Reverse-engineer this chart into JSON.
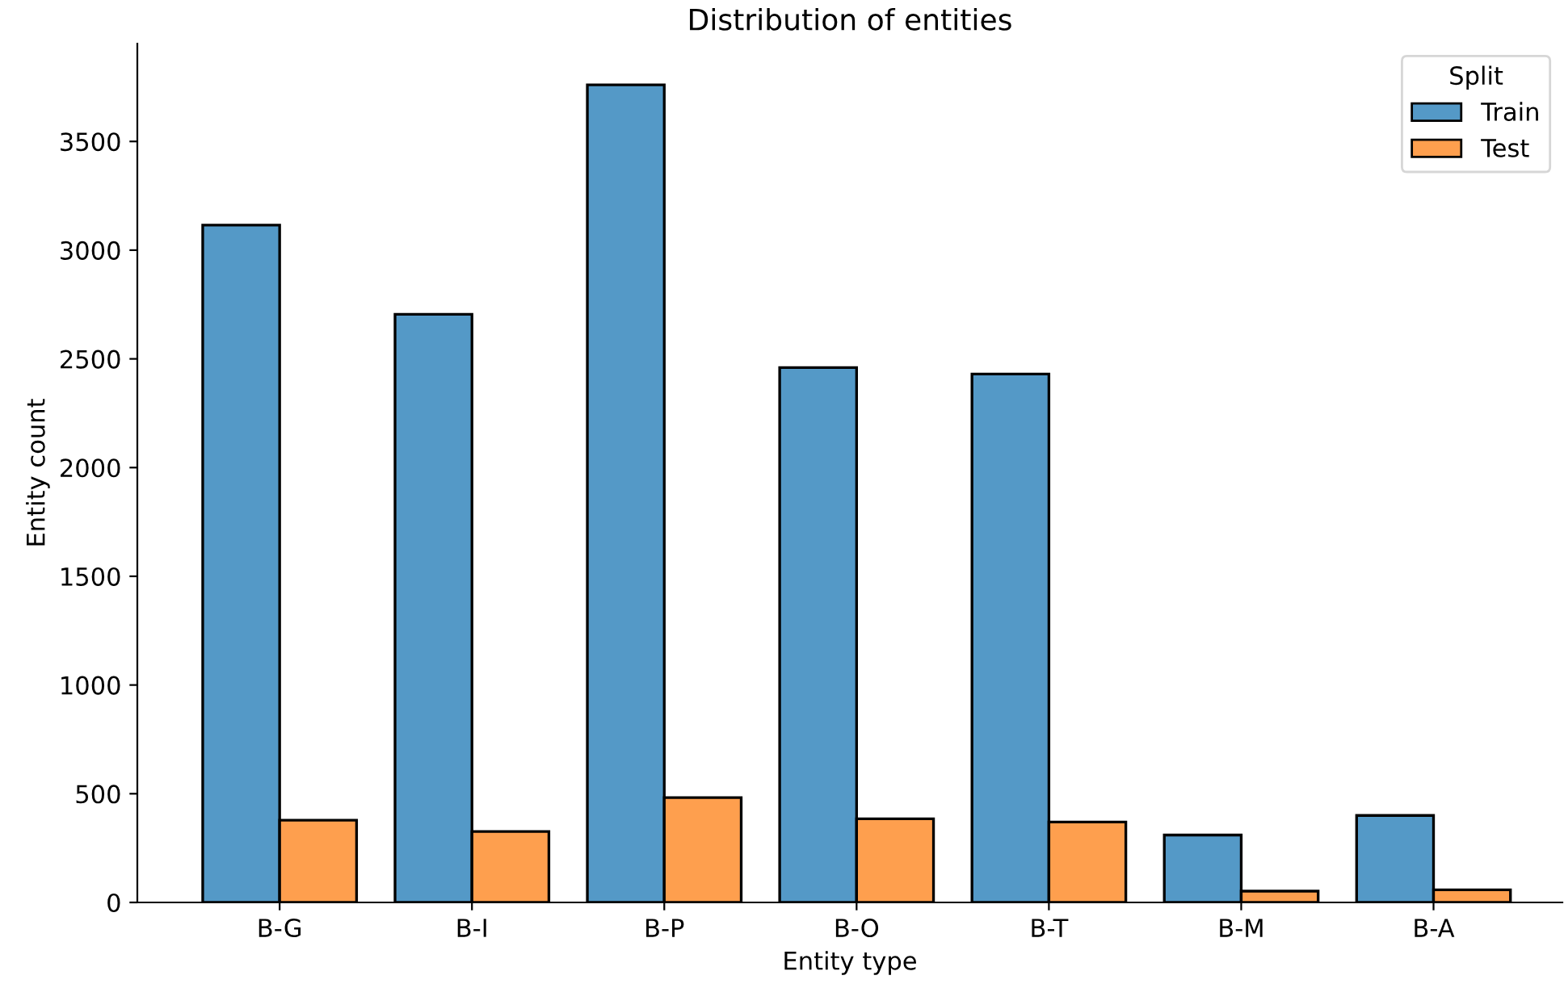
{
  "chart_data": {
    "type": "bar",
    "title": "Distribution of entities",
    "xlabel": "Entity type",
    "ylabel": "Entity count",
    "legend_title": "Split",
    "categories": [
      "B-G",
      "B-I",
      "B-P",
      "B-O",
      "B-T",
      "B-M",
      "B-A"
    ],
    "series": [
      {
        "name": "Train",
        "color": "#5499c7",
        "values": [
          3115,
          2705,
          3760,
          2460,
          2430,
          310,
          400
        ]
      },
      {
        "name": "Test",
        "color": "#fe9f4e",
        "values": [
          378,
          326,
          482,
          385,
          370,
          52,
          58
        ]
      }
    ],
    "ylim": [
      0,
      3950
    ],
    "yticks": [
      0,
      500,
      1000,
      1500,
      2000,
      2500,
      3000,
      3500
    ],
    "grid": false,
    "legend": "top right"
  }
}
